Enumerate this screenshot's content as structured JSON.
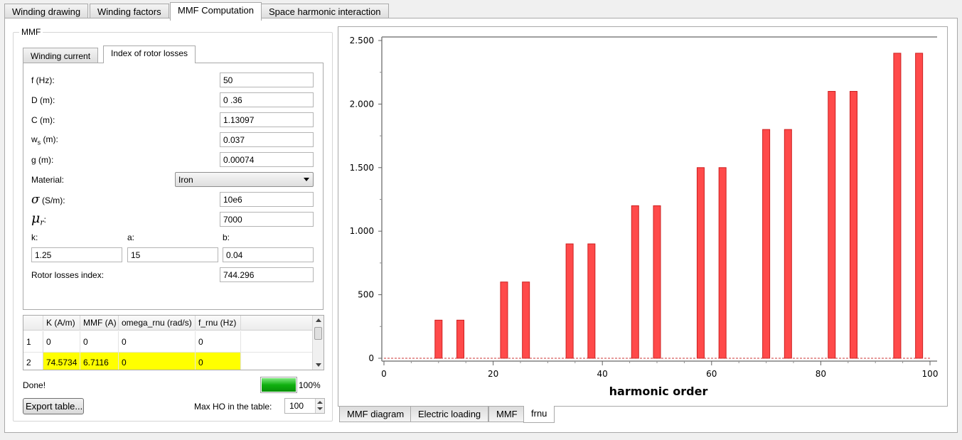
{
  "top_tabs": [
    "Winding drawing",
    "Winding factors",
    "MMF Computation",
    "Space harmonic interaction"
  ],
  "group_title": "MMF",
  "inner_tabs": [
    "Winding current",
    "Index of rotor losses"
  ],
  "form": {
    "f_label": "f (Hz):",
    "f_value": "50",
    "D_label": "D (m):",
    "D_value": "0 .36",
    "C_label": "C (m):",
    "C_value": "1.13097",
    "ws_label_main": "w",
    "ws_label_sub": "s",
    "ws_label_rest": " (m):",
    "ws_value": "0.037",
    "g_label": "g (m):",
    "g_value": "0.00074",
    "material_label": "Material:",
    "material_value": "Iron",
    "sigma_symbol": "σ",
    "sigma_rest": " (S/m):",
    "sigma_value": "10e6",
    "mu_symbol": "μ",
    "mu_sub": "r",
    "mu_rest": ":",
    "mu_value": "7000",
    "k_label": "k:",
    "k_value": "1.25",
    "a_label": "a:",
    "a_value": "15",
    "b_label": "b:",
    "b_value": "0.04",
    "rli_label": "Rotor losses index:",
    "rli_value": "744.296"
  },
  "table": {
    "headers": [
      "K (A/m)",
      "MMF (A)",
      "omega_rnu (rad/s)",
      "f_rnu (Hz)"
    ],
    "rows": [
      {
        "index": "1",
        "cells": [
          "0",
          "0",
          "0",
          "0"
        ]
      },
      {
        "index": "2",
        "cells": [
          "74.5734",
          "6.7116",
          "0",
          "0"
        ]
      }
    ]
  },
  "status_text": "Done!",
  "progress_percent": 100,
  "progress_label": "100%",
  "export_button": "Export table...",
  "max_ho_label": "Max HO in the table:",
  "max_ho_value": "100",
  "bottom_tabs": [
    "MMF diagram",
    "Electric loading",
    "MMF",
    "frnu"
  ],
  "colors": {
    "bar": "#ff4a4a",
    "bar_edge": "#cc2020",
    "highlight": "#ffff00"
  },
  "chart_data": {
    "type": "bar",
    "xlabel": "harmonic order",
    "ylabel": "",
    "xlim": [
      0,
      100
    ],
    "ylim": [
      0,
      2500
    ],
    "x_ticks": [
      0,
      20,
      40,
      60,
      80,
      100
    ],
    "y_ticks": [
      0,
      500,
      1000,
      1500,
      2000,
      2500
    ],
    "y_tick_labels": [
      "0",
      "500",
      "1.000",
      "1.500",
      "2.000",
      "2.500"
    ],
    "x": [
      10,
      14,
      22,
      26,
      34,
      38,
      46,
      50,
      58,
      62,
      70,
      74,
      82,
      86,
      94,
      98
    ],
    "values": [
      300,
      300,
      600,
      600,
      900,
      900,
      1200,
      1200,
      1500,
      1500,
      1800,
      1800,
      2100,
      2100,
      2400,
      2400
    ]
  }
}
